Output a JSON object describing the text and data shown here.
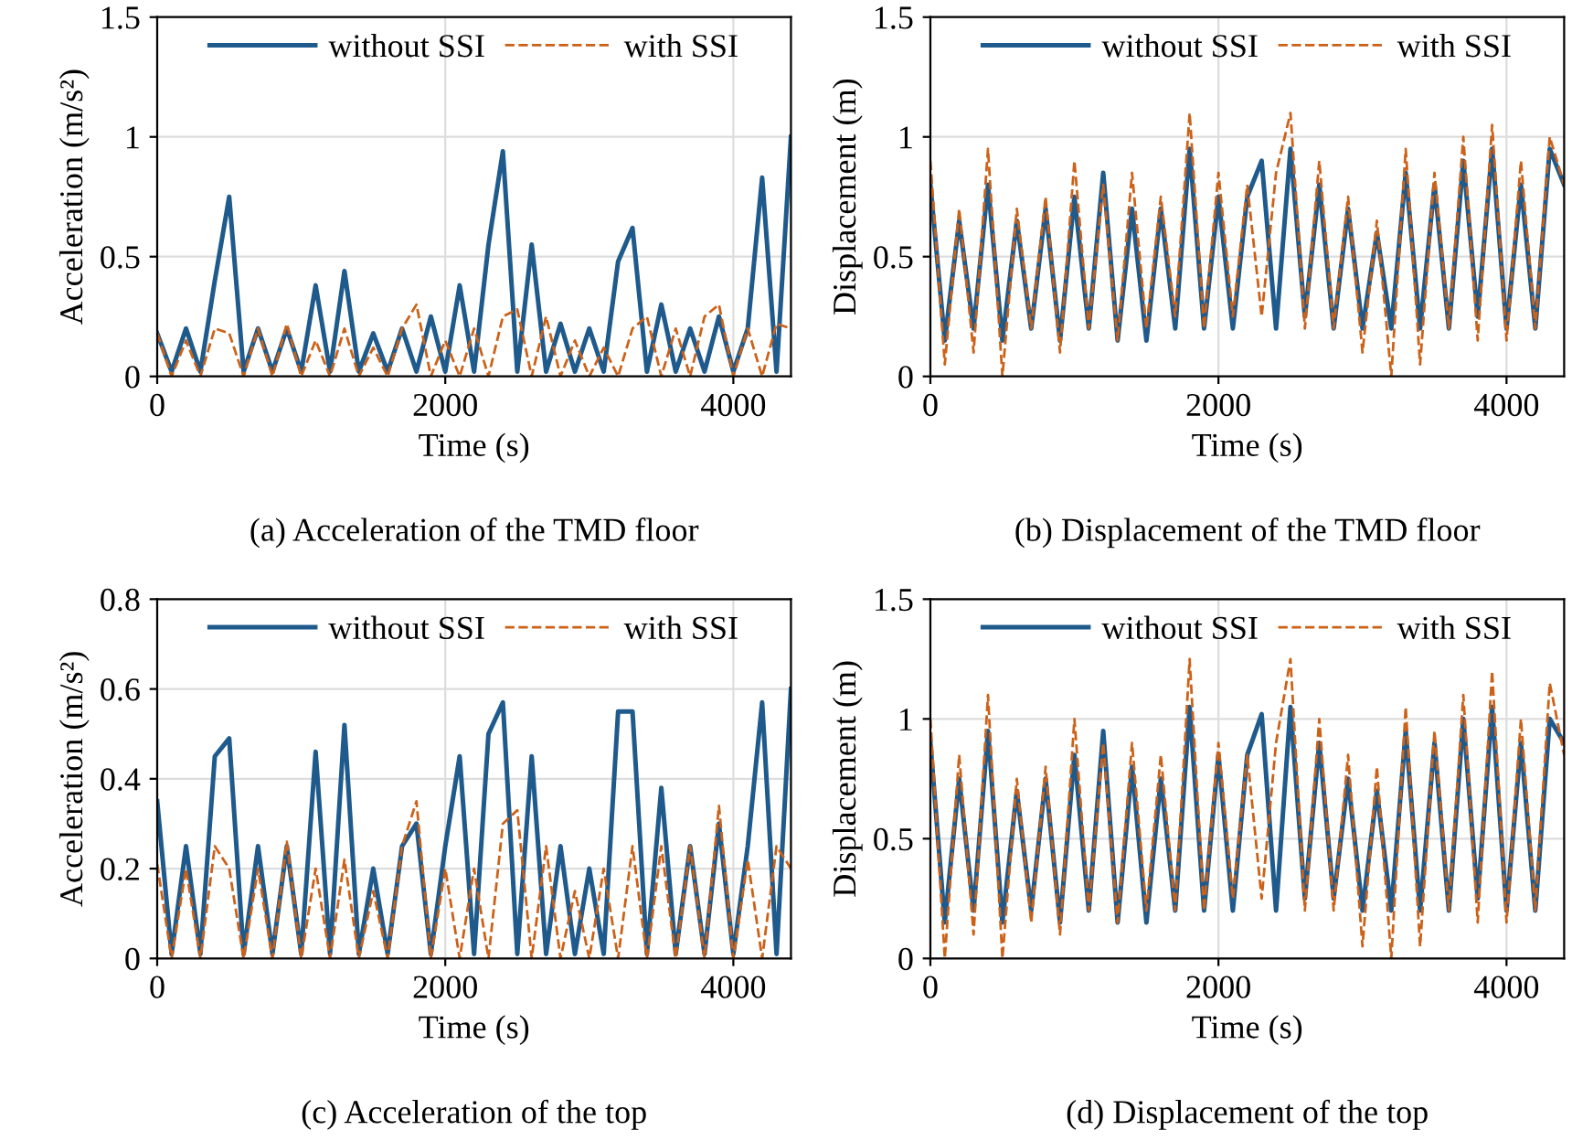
{
  "chart_data": [
    {
      "type": "line",
      "title": "(a) Acceleration of the TMD floor",
      "xlabel": "Time (s)",
      "ylabel": "Acceleration (m/s²)",
      "x": [
        0,
        100,
        200,
        300,
        400,
        500,
        600,
        700,
        800,
        900,
        1000,
        1100,
        1200,
        1300,
        1400,
        1500,
        1600,
        1700,
        1800,
        1900,
        2000,
        2100,
        2200,
        2300,
        2400,
        2500,
        2600,
        2700,
        2800,
        2900,
        3000,
        3100,
        3200,
        3300,
        3400,
        3500,
        3600,
        3700,
        3800,
        3900,
        4000,
        4100,
        4200,
        4300,
        4400
      ],
      "xlim": [
        0,
        4400
      ],
      "xticks": [
        0,
        2000,
        4000
      ],
      "ylim": [
        0,
        1.5
      ],
      "yticks": [
        0,
        0.5,
        1,
        1.5
      ],
      "grid": true,
      "legend": "top",
      "series": [
        {
          "name": "without SSI",
          "color": "#1f5a8c",
          "line_style": "solid",
          "values": [
            0.18,
            0.02,
            0.2,
            0.02,
            0.4,
            0.75,
            0.02,
            0.2,
            0.02,
            0.2,
            0.02,
            0.38,
            0.02,
            0.44,
            0.02,
            0.18,
            0.02,
            0.2,
            0.02,
            0.25,
            0.02,
            0.38,
            0.02,
            0.55,
            0.94,
            0.02,
            0.55,
            0.02,
            0.22,
            0.02,
            0.2,
            0.02,
            0.48,
            0.62,
            0.02,
            0.3,
            0.02,
            0.2,
            0.02,
            0.25,
            0.02,
            0.2,
            0.83,
            0.02,
            1.0
          ]
        },
        {
          "name": "with SSI",
          "color": "#cc6118",
          "line_style": "dashed",
          "values": [
            0.18,
            0,
            0.15,
            0,
            0.2,
            0.18,
            0,
            0.2,
            0,
            0.22,
            0,
            0.15,
            0,
            0.2,
            0,
            0.12,
            0,
            0.2,
            0.3,
            0,
            0.15,
            0,
            0.2,
            0,
            0.25,
            0.28,
            0,
            0.25,
            0,
            0.15,
            0,
            0.12,
            0,
            0.2,
            0.25,
            0,
            0.2,
            0,
            0.25,
            0.3,
            0,
            0.2,
            0,
            0.22,
            0.2
          ]
        }
      ]
    },
    {
      "type": "line",
      "title": "(b) Displacement of the TMD floor",
      "xlabel": "Time (s)",
      "ylabel": "Displacement (m)",
      "x": [
        0,
        100,
        200,
        300,
        400,
        500,
        600,
        700,
        800,
        900,
        1000,
        1100,
        1200,
        1300,
        1400,
        1500,
        1600,
        1700,
        1800,
        1900,
        2000,
        2100,
        2200,
        2300,
        2400,
        2500,
        2600,
        2700,
        2800,
        2900,
        3000,
        3100,
        3200,
        3300,
        3400,
        3500,
        3600,
        3700,
        3800,
        3900,
        4000,
        4100,
        4200,
        4300,
        4400
      ],
      "xlim": [
        0,
        4400
      ],
      "xticks": [
        0,
        2000,
        4000
      ],
      "ylim": [
        0,
        1.5
      ],
      "yticks": [
        0,
        0.5,
        1,
        1.5
      ],
      "grid": true,
      "legend": "top",
      "series": [
        {
          "name": "without SSI",
          "color": "#1f5a8c",
          "line_style": "solid",
          "values": [
            0.8,
            0.15,
            0.65,
            0.2,
            0.8,
            0.15,
            0.65,
            0.2,
            0.7,
            0.15,
            0.75,
            0.2,
            0.85,
            0.15,
            0.7,
            0.15,
            0.7,
            0.2,
            0.95,
            0.2,
            0.75,
            0.2,
            0.75,
            0.9,
            0.2,
            0.95,
            0.25,
            0.8,
            0.2,
            0.7,
            0.2,
            0.6,
            0.2,
            0.85,
            0.2,
            0.8,
            0.2,
            0.9,
            0.25,
            0.95,
            0.2,
            0.8,
            0.2,
            0.95,
            0.8
          ]
        },
        {
          "name": "with SSI",
          "color": "#cc6118",
          "line_style": "dashed",
          "values": [
            0.9,
            0.05,
            0.7,
            0.1,
            0.95,
            0,
            0.7,
            0.2,
            0.75,
            0.1,
            0.9,
            0.2,
            0.8,
            0.15,
            0.85,
            0.2,
            0.75,
            0.25,
            1.1,
            0.2,
            0.85,
            0.25,
            0.8,
            0.25,
            0.85,
            1.1,
            0.2,
            0.9,
            0.2,
            0.75,
            0.1,
            0.65,
            0,
            0.95,
            0.05,
            0.85,
            0.2,
            1.0,
            0.15,
            1.05,
            0.15,
            0.9,
            0.2,
            1.0,
            0.8
          ]
        }
      ]
    },
    {
      "type": "line",
      "title": "(c) Acceleration of the top",
      "xlabel": "Time (s)",
      "ylabel": "Acceleration (m/s²)",
      "x": [
        0,
        100,
        200,
        300,
        400,
        500,
        600,
        700,
        800,
        900,
        1000,
        1100,
        1200,
        1300,
        1400,
        1500,
        1600,
        1700,
        1800,
        1900,
        2000,
        2100,
        2200,
        2300,
        2400,
        2500,
        2600,
        2700,
        2800,
        2900,
        3000,
        3100,
        3200,
        3300,
        3400,
        3500,
        3600,
        3700,
        3800,
        3900,
        4000,
        4100,
        4200,
        4300,
        4400
      ],
      "xlim": [
        0,
        4400
      ],
      "xticks": [
        0,
        2000,
        4000
      ],
      "ylim": [
        0,
        0.8
      ],
      "yticks": [
        0,
        0.2,
        0.4,
        0.6,
        0.8
      ],
      "grid": true,
      "legend": "top",
      "series": [
        {
          "name": "without SSI",
          "color": "#1f5a8c",
          "line_style": "solid",
          "values": [
            0.35,
            0.01,
            0.25,
            0.01,
            0.45,
            0.49,
            0.01,
            0.25,
            0.01,
            0.25,
            0.01,
            0.46,
            0.01,
            0.52,
            0.01,
            0.2,
            0.01,
            0.25,
            0.3,
            0.01,
            0.25,
            0.45,
            0.01,
            0.5,
            0.57,
            0.01,
            0.45,
            0.01,
            0.25,
            0.01,
            0.2,
            0.01,
            0.55,
            0.55,
            0.01,
            0.38,
            0.01,
            0.25,
            0.01,
            0.3,
            0.01,
            0.25,
            0.57,
            0.01,
            0.6
          ]
        },
        {
          "name": "with SSI",
          "color": "#cc6118",
          "line_style": "dashed",
          "values": [
            0.21,
            0,
            0.2,
            0,
            0.25,
            0.2,
            0,
            0.2,
            0,
            0.26,
            0,
            0.2,
            0,
            0.22,
            0,
            0.15,
            0,
            0.25,
            0.35,
            0,
            0.2,
            0,
            0.2,
            0,
            0.3,
            0.33,
            0,
            0.25,
            0,
            0.15,
            0,
            0.2,
            0,
            0.25,
            0,
            0.25,
            0,
            0.25,
            0,
            0.34,
            0,
            0.22,
            0,
            0.25,
            0.2
          ]
        }
      ]
    },
    {
      "type": "line",
      "title": "(d) Displacement of the top",
      "xlabel": "Time (s)",
      "ylabel": "Displacement (m)",
      "x": [
        0,
        100,
        200,
        300,
        400,
        500,
        600,
        700,
        800,
        900,
        1000,
        1100,
        1200,
        1300,
        1400,
        1500,
        1600,
        1700,
        1800,
        1900,
        2000,
        2100,
        2200,
        2300,
        2400,
        2500,
        2600,
        2700,
        2800,
        2900,
        3000,
        3100,
        3200,
        3300,
        3400,
        3500,
        3600,
        3700,
        3800,
        3900,
        4000,
        4100,
        4200,
        4300,
        4400
      ],
      "xlim": [
        0,
        4400
      ],
      "xticks": [
        0,
        2000,
        4000
      ],
      "ylim": [
        0,
        1.5
      ],
      "yticks": [
        0,
        0.5,
        1,
        1.5
      ],
      "grid": true,
      "legend": "top",
      "series": [
        {
          "name": "without SSI",
          "color": "#1f5a8c",
          "line_style": "solid",
          "values": [
            0.9,
            0.15,
            0.75,
            0.2,
            0.95,
            0.15,
            0.7,
            0.2,
            0.75,
            0.15,
            0.85,
            0.2,
            0.95,
            0.15,
            0.8,
            0.15,
            0.75,
            0.2,
            1.05,
            0.2,
            0.85,
            0.2,
            0.85,
            1.02,
            0.2,
            1.05,
            0.25,
            0.9,
            0.25,
            0.75,
            0.2,
            0.7,
            0.2,
            0.95,
            0.2,
            0.9,
            0.2,
            1.0,
            0.25,
            1.05,
            0.2,
            0.9,
            0.2,
            1.0,
            0.9
          ]
        },
        {
          "name": "with SSI",
          "color": "#cc6118",
          "line_style": "dashed",
          "values": [
            1.0,
            0,
            0.85,
            0.1,
            1.1,
            0,
            0.75,
            0.15,
            0.8,
            0.1,
            1.0,
            0.2,
            0.9,
            0.15,
            0.9,
            0.2,
            0.85,
            0.2,
            1.25,
            0.2,
            0.9,
            0.25,
            0.85,
            0.25,
            0.9,
            1.25,
            0.2,
            1.0,
            0.2,
            0.85,
            0.05,
            0.8,
            0,
            1.05,
            0.05,
            0.95,
            0.2,
            1.1,
            0.15,
            1.2,
            0.15,
            1.0,
            0.2,
            1.15,
            0.85
          ]
        }
      ]
    }
  ]
}
